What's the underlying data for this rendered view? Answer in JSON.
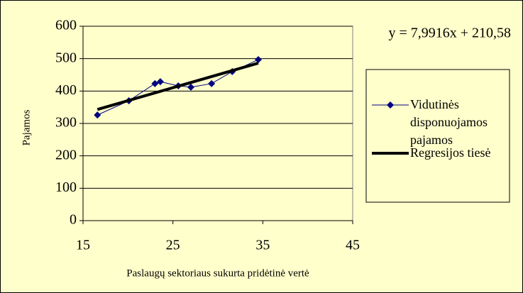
{
  "chart_data": {
    "type": "scatter",
    "x_label": "Paslaugų sektoriaus sukurta pridėtinė vertė",
    "y_label": "Pajamos",
    "annotation": "y = 7,9916x + 210,58",
    "series": [
      {
        "name": "Vidutinės disponuojamos pajamos",
        "color": "#000080",
        "style": "line-marker",
        "x": [
          16.6,
          20.1,
          23.0,
          23.6,
          25.6,
          27.0,
          29.3,
          31.6,
          34.5
        ],
        "values": [
          326,
          370,
          423,
          429,
          416,
          412,
          423,
          460,
          497
        ]
      },
      {
        "name": "Regresijos tiesė",
        "color": "#000000",
        "style": "thick-line",
        "x": [
          16.6,
          34.5
        ],
        "values": [
          343.2,
          486.3
        ]
      }
    ],
    "xlim": [
      15,
      45
    ],
    "xticks": [
      15,
      25,
      35,
      45
    ],
    "ylim": [
      0,
      600
    ],
    "yticks": [
      0,
      100,
      200,
      300,
      400,
      500,
      600
    ],
    "grid": true,
    "legend": "right"
  }
}
